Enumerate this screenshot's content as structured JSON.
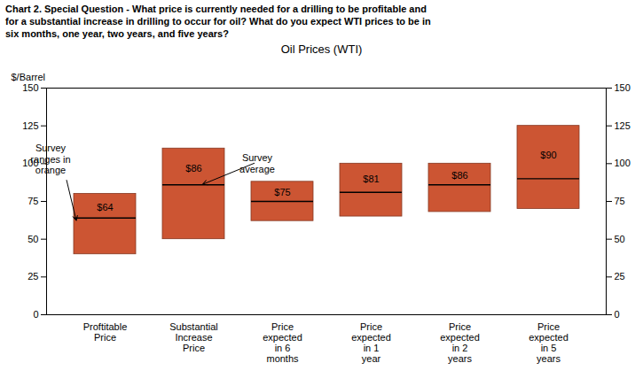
{
  "chart_data": {
    "type": "range_bar",
    "title": "Chart 2. Special Question - What price is currently needed for a drilling to be profitable and\nfor a substantial increase in drilling to occur for oil? What do you expect WTI prices to be in\nsix months, one year, two years, and five years?",
    "subtitle": "Oil Prices (WTI)",
    "ylabel": "$/Barrel",
    "categories": [
      "Proftitable\nPrice",
      "Substantial\nIncrease\nPrice",
      "Price\nexpected\nin 6\nmonths",
      "Price\nexpected\nin 1\nyear",
      "Price\nexpected\nin 2\nyears",
      "Price\nexpected\nin 5\nyears"
    ],
    "lows": [
      40,
      50,
      62,
      65,
      68,
      70
    ],
    "highs": [
      80,
      110,
      88,
      100,
      100,
      125
    ],
    "values": [
      64,
      86,
      75,
      81,
      86,
      90
    ],
    "value_labels": [
      "$64",
      "$86",
      "$75",
      "$81",
      "$86",
      "$90"
    ],
    "data_labels": true,
    "color": "#cc5533",
    "ylim": [
      0,
      150
    ],
    "yticks": [
      0,
      25,
      50,
      75,
      100,
      125,
      150
    ],
    "y2lim": [
      0,
      150
    ],
    "y2ticks": [
      0,
      25,
      50,
      75,
      100,
      125,
      150
    ],
    "annotations": [
      {
        "text": "Survey\nranges in\norange",
        "category": "Proftitable\nPrice",
        "y": 62
      },
      {
        "text": "Survey\naverage",
        "category": "Substantial\nIncrease\nPrice",
        "y": 86
      }
    ]
  }
}
